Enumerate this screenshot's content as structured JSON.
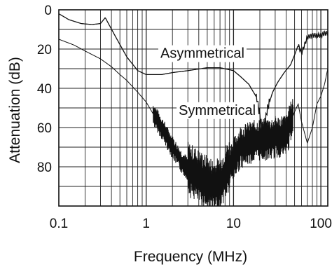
{
  "chart_data": {
    "type": "line",
    "title": "",
    "xlabel": "Frequency (MHz)",
    "ylabel": "Attenuation (dB)",
    "x_scale": "log",
    "xlim": [
      0.1,
      120
    ],
    "ylim": [
      0,
      100
    ],
    "y_inverted": true,
    "grid": true,
    "x_tick_labels": [
      "0.1",
      "1",
      "10",
      "100"
    ],
    "x_tick_values": [
      0.1,
      1,
      10,
      100
    ],
    "y_tick_labels": [
      "0",
      "20",
      "40",
      "60",
      "80"
    ],
    "y_tick_values": [
      0,
      20,
      40,
      60,
      80
    ],
    "annotations": [
      {
        "text": "Asymmetrical",
        "x": 4.4,
        "y": 22
      },
      {
        "text": "Symmetrical",
        "x": 6.5,
        "y": 51
      }
    ],
    "series": [
      {
        "key": "asymmetrical",
        "color": "#111111",
        "x": [
          0.1,
          0.13,
          0.18,
          0.24,
          0.3,
          0.34,
          0.38,
          0.45,
          0.6,
          0.8,
          1,
          1.5,
          2,
          3,
          5,
          7,
          10,
          12,
          15,
          18,
          20,
          21,
          22,
          23,
          24,
          25,
          28,
          32,
          38,
          45,
          50,
          55,
          60,
          70,
          80,
          90,
          100,
          110,
          120
        ],
        "y": [
          2,
          5,
          7,
          7.5,
          7,
          4,
          8,
          14,
          24,
          31,
          33,
          33,
          32,
          31,
          29.5,
          29.5,
          31,
          34,
          38,
          44,
          53,
          60,
          66,
          58,
          52,
          49,
          42,
          37,
          32,
          28,
          23,
          18,
          22,
          14,
          13,
          13,
          13,
          12,
          12
        ]
      },
      {
        "key": "symmetrical",
        "color": "#111111",
        "x": [
          0.1,
          0.15,
          0.2,
          0.3,
          0.4,
          0.5,
          0.6,
          0.8,
          1,
          1.2,
          1.5,
          2,
          2.5,
          3,
          4,
          5,
          6,
          7,
          8,
          10,
          12,
          15,
          20,
          25,
          30,
          40,
          50,
          55,
          60,
          70,
          80,
          90,
          100,
          110,
          120
        ],
        "y": [
          15,
          18,
          21,
          25,
          29,
          33,
          36,
          42,
          47,
          53,
          60,
          70,
          77,
          81,
          85,
          88,
          90,
          89,
          83,
          76,
          70,
          68,
          66,
          66,
          65,
          64,
          52,
          48,
          57,
          68,
          60,
          48,
          44,
          38,
          30
        ]
      }
    ]
  }
}
